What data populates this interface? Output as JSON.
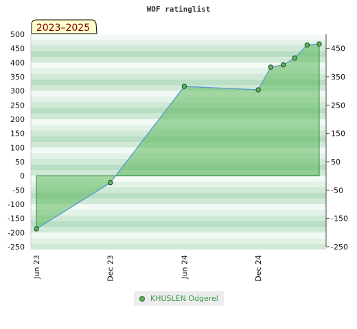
{
  "chart_data": {
    "type": "line",
    "title": "WOF ratinglist",
    "period_label": "2023–2025",
    "x_ticks": [
      "Jun 23",
      "Dec 23",
      "Jun 24",
      "Dec 24"
    ],
    "y_ticks_left": [
      "500",
      "450",
      "400",
      "350",
      "300",
      "250",
      "200",
      "150",
      "100",
      "50",
      "0",
      "-50",
      "-100",
      "-150",
      "-200",
      "-250"
    ],
    "y_ticks_right": [
      "450",
      "350",
      "250",
      "150",
      "50",
      "-50",
      "-150",
      "-250"
    ],
    "ylim": [
      -250,
      500
    ],
    "series": [
      {
        "name": "KHUSLEN Odgerel",
        "color": "#5cb85c",
        "points": [
          {
            "x": "2023-06",
            "y": -187
          },
          {
            "x": "2023-12",
            "y": -24
          },
          {
            "x": "2024-06",
            "y": 316
          },
          {
            "x": "2024-12",
            "y": 304
          },
          {
            "x": "2025-01",
            "y": 384
          },
          {
            "x": "2025-02",
            "y": 392
          },
          {
            "x": "2025-03",
            "y": 416
          },
          {
            "x": "2025-04",
            "y": 462
          },
          {
            "x": "2025-05",
            "y": 466
          }
        ]
      }
    ],
    "legend": [
      "KHUSLEN Odgerel"
    ]
  }
}
